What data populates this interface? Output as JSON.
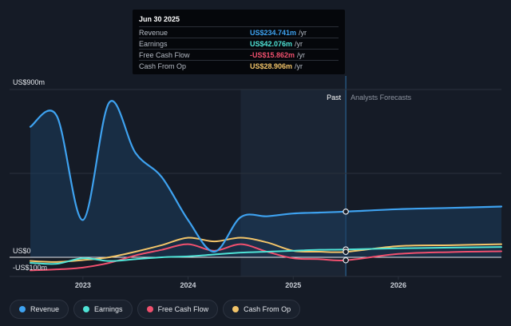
{
  "tooltip": {
    "date": "Jun 30 2025",
    "rows": [
      {
        "label": "Revenue",
        "value": "US$234.741m",
        "unit": "/yr",
        "color": "#3ea2f0"
      },
      {
        "label": "Earnings",
        "value": "US$42.076m",
        "unit": "/yr",
        "color": "#4fe3d6"
      },
      {
        "label": "Free Cash Flow",
        "value": "-US$15.862m",
        "unit": "/yr",
        "color": "#f0506e"
      },
      {
        "label": "Cash From Op",
        "value": "US$28.906m",
        "unit": "/yr",
        "color": "#f2c469"
      }
    ]
  },
  "legend": [
    {
      "label": "Revenue",
      "color": "#3ea2f0"
    },
    {
      "label": "Earnings",
      "color": "#4fe3d6"
    },
    {
      "label": "Free Cash Flow",
      "color": "#f0506e"
    },
    {
      "label": "Cash From Op",
      "color": "#f2c469"
    }
  ],
  "chart_data": {
    "type": "line",
    "y_labels": [
      {
        "label": "US$900m",
        "value": 900
      },
      {
        "label": "US$0",
        "value": 0
      },
      {
        "label": "-US$100m",
        "value": -100
      }
    ],
    "ylim": [
      -100,
      900
    ],
    "xlim": [
      2022.5,
      2026.98
    ],
    "x_ticks": [
      {
        "label": "2023",
        "value": 2023.0
      },
      {
        "label": "2024",
        "value": 2024.0
      },
      {
        "label": "2025",
        "value": 2025.0
      },
      {
        "label": "2026",
        "value": 2026.0
      }
    ],
    "past_label": "Past",
    "forecast_label": "Analysts Forecasts",
    "past_start": 2024.5,
    "divider": 2025.5,
    "series": [
      {
        "name": "Revenue",
        "color": "#3ea2f0",
        "fill": true,
        "points": [
          [
            2022.5,
            700
          ],
          [
            2022.75,
            760
          ],
          [
            2023.0,
            200
          ],
          [
            2023.25,
            830
          ],
          [
            2023.5,
            560
          ],
          [
            2023.75,
            430
          ],
          [
            2024.0,
            200
          ],
          [
            2024.25,
            30
          ],
          [
            2024.5,
            215
          ],
          [
            2024.75,
            220
          ],
          [
            2025.0,
            235
          ],
          [
            2025.25,
            240
          ],
          [
            2025.5,
            245
          ],
          [
            2026.0,
            258
          ],
          [
            2026.5,
            265
          ],
          [
            2026.98,
            272
          ]
        ]
      },
      {
        "name": "Earnings",
        "color": "#4fe3d6",
        "fill": false,
        "points": [
          [
            2022.5,
            -30
          ],
          [
            2022.75,
            -35
          ],
          [
            2023.0,
            -5
          ],
          [
            2023.25,
            -20
          ],
          [
            2023.5,
            -10
          ],
          [
            2023.75,
            0
          ],
          [
            2024.0,
            5
          ],
          [
            2024.25,
            15
          ],
          [
            2024.5,
            25
          ],
          [
            2024.75,
            30
          ],
          [
            2025.0,
            35
          ],
          [
            2025.25,
            40
          ],
          [
            2025.5,
            42
          ],
          [
            2026.0,
            48
          ],
          [
            2026.5,
            52
          ],
          [
            2026.98,
            55
          ]
        ]
      },
      {
        "name": "Free Cash Flow",
        "color": "#f0506e",
        "fill": false,
        "points": [
          [
            2022.5,
            -70
          ],
          [
            2022.75,
            -65
          ],
          [
            2023.0,
            -55
          ],
          [
            2023.25,
            -30
          ],
          [
            2023.5,
            10
          ],
          [
            2023.75,
            40
          ],
          [
            2024.0,
            70
          ],
          [
            2024.25,
            35
          ],
          [
            2024.5,
            70
          ],
          [
            2024.75,
            30
          ],
          [
            2025.0,
            -5
          ],
          [
            2025.25,
            -10
          ],
          [
            2025.5,
            -16
          ],
          [
            2026.0,
            18
          ],
          [
            2026.5,
            28
          ],
          [
            2026.98,
            32
          ]
        ]
      },
      {
        "name": "Cash From Op",
        "color": "#f2c469",
        "fill": false,
        "points": [
          [
            2022.5,
            -20
          ],
          [
            2022.75,
            -25
          ],
          [
            2023.0,
            -15
          ],
          [
            2023.25,
            0
          ],
          [
            2023.5,
            30
          ],
          [
            2023.75,
            65
          ],
          [
            2024.0,
            105
          ],
          [
            2024.25,
            85
          ],
          [
            2024.5,
            105
          ],
          [
            2024.75,
            80
          ],
          [
            2025.0,
            35
          ],
          [
            2025.25,
            30
          ],
          [
            2025.5,
            29
          ],
          [
            2026.0,
            60
          ],
          [
            2026.5,
            65
          ],
          [
            2026.98,
            70
          ]
        ]
      }
    ]
  }
}
